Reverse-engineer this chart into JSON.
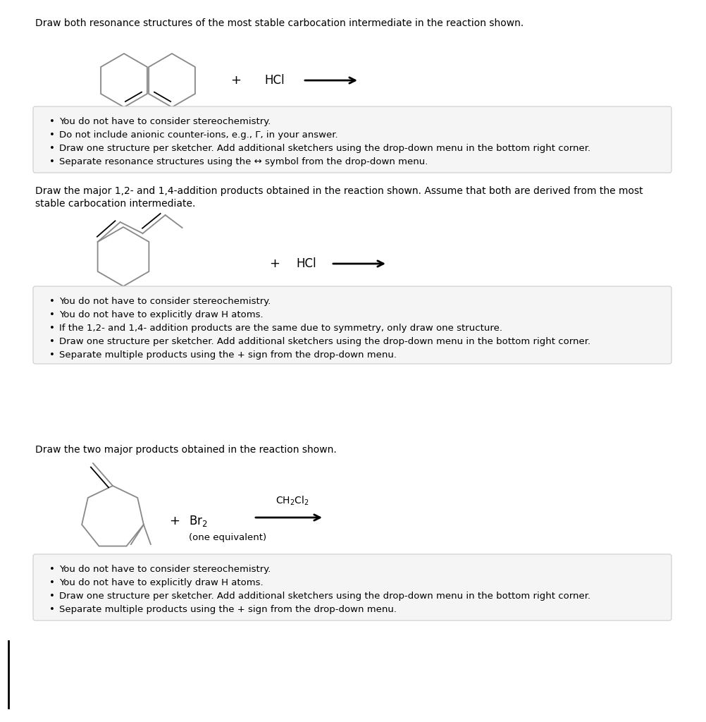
{
  "bg_color": "#ffffff",
  "text_color": "#000000",
  "box_bg": "#f5f5f5",
  "box_edge": "#cccccc",
  "section1_question": "Draw both resonance structures of the most stable carbocation intermediate in the reaction shown.",
  "section1_bullets": [
    "You do not have to consider stereochemistry.",
    "Do not include anionic counter-ions, e.g., Γ, in your answer.",
    "Draw one structure per sketcher. Add additional sketchers using the drop-down menu in the bottom right corner.",
    "Separate resonance structures using the ↔ symbol from the drop-down menu."
  ],
  "section2_question": "Draw the major 1,2- and 1,4-addition products obtained in the reaction shown. Assume that both are derived from the most\nstable carbocation intermediate.",
  "section2_bullets": [
    "You do not have to consider stereochemistry.",
    "You do not have to explicitly draw H atoms.",
    "If the 1,2- and 1,4- addition products are the same due to symmetry, only draw one structure.",
    "Draw one structure per sketcher. Add additional sketchers using the drop-down menu in the bottom right corner.",
    "Separate multiple products using the + sign from the drop-down menu."
  ],
  "section3_question": "Draw the two major products obtained in the reaction shown.",
  "section3_bullets": [
    "You do not have to consider stereochemistry.",
    "You do not have to explicitly draw H atoms.",
    "Draw one structure per sketcher. Add additional sketchers using the drop-down menu in the bottom right corner.",
    "Separate multiple products using the + sign from the drop-down menu."
  ]
}
